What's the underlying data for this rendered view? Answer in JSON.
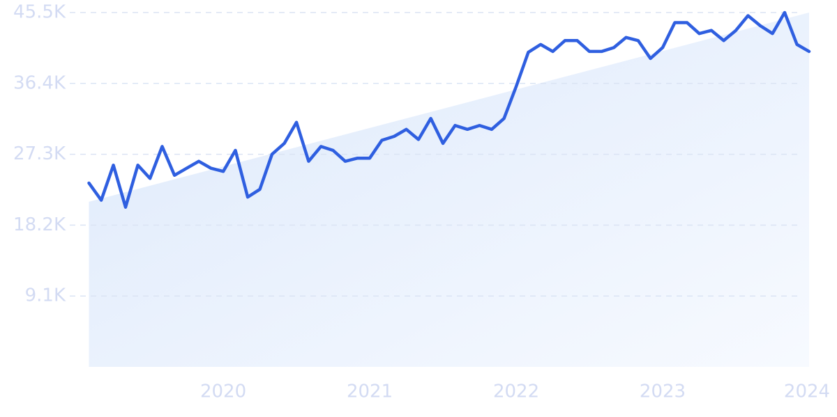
{
  "chart_data": {
    "type": "line",
    "color": "#2f5fe0",
    "grid": true,
    "x": [
      2019.083,
      2019.167,
      2019.25,
      2019.333,
      2019.417,
      2019.5,
      2019.583,
      2019.667,
      2019.75,
      2019.833,
      2019.917,
      2020,
      2020.083,
      2020.167,
      2020.25,
      2020.333,
      2020.417,
      2020.5,
      2020.583,
      2020.667,
      2020.75,
      2020.833,
      2020.917,
      2021,
      2021.083,
      2021.167,
      2021.25,
      2021.333,
      2021.417,
      2021.5,
      2021.583,
      2021.667,
      2021.75,
      2021.833,
      2021.917,
      2022,
      2022.083,
      2022.167,
      2022.25,
      2022.333,
      2022.417,
      2022.5,
      2022.583,
      2022.667,
      2022.75,
      2022.833,
      2022.917,
      2023,
      2023.083,
      2023.167,
      2023.25,
      2023.333,
      2023.417,
      2023.5,
      2023.583,
      2023.667,
      2023.75,
      2023.833,
      2023.917,
      2024
    ],
    "values": [
      23600,
      21400,
      25900,
      20500,
      25900,
      24200,
      28300,
      24600,
      25500,
      26400,
      25500,
      25100,
      27800,
      21800,
      22800,
      27300,
      28700,
      31400,
      26400,
      28300,
      27800,
      26400,
      26800,
      26800,
      29100,
      29600,
      30500,
      29200,
      31900,
      28700,
      31000,
      30500,
      31000,
      30500,
      31900,
      36000,
      40400,
      41400,
      40500,
      41900,
      41900,
      40500,
      40500,
      41000,
      42300,
      41900,
      39600,
      41000,
      44200,
      44200,
      42800,
      43200,
      41900,
      43200,
      45100,
      43800,
      42800,
      45500,
      41400,
      40500
    ],
    "trend": [
      21200,
      45500
    ],
    "xlim": [
      2019.083,
      2024
    ],
    "xticks": [
      2020,
      2021,
      2022,
      2023,
      2024
    ],
    "ylim": [
      0,
      45500
    ],
    "yticks": [
      {
        "value": 9100,
        "label": "9.1K"
      },
      {
        "value": 18200,
        "label": "18.2K"
      },
      {
        "value": 27300,
        "label": "27.3K"
      },
      {
        "value": 36400,
        "label": "36.4K"
      },
      {
        "value": 45500,
        "label": "45.5K"
      }
    ]
  }
}
